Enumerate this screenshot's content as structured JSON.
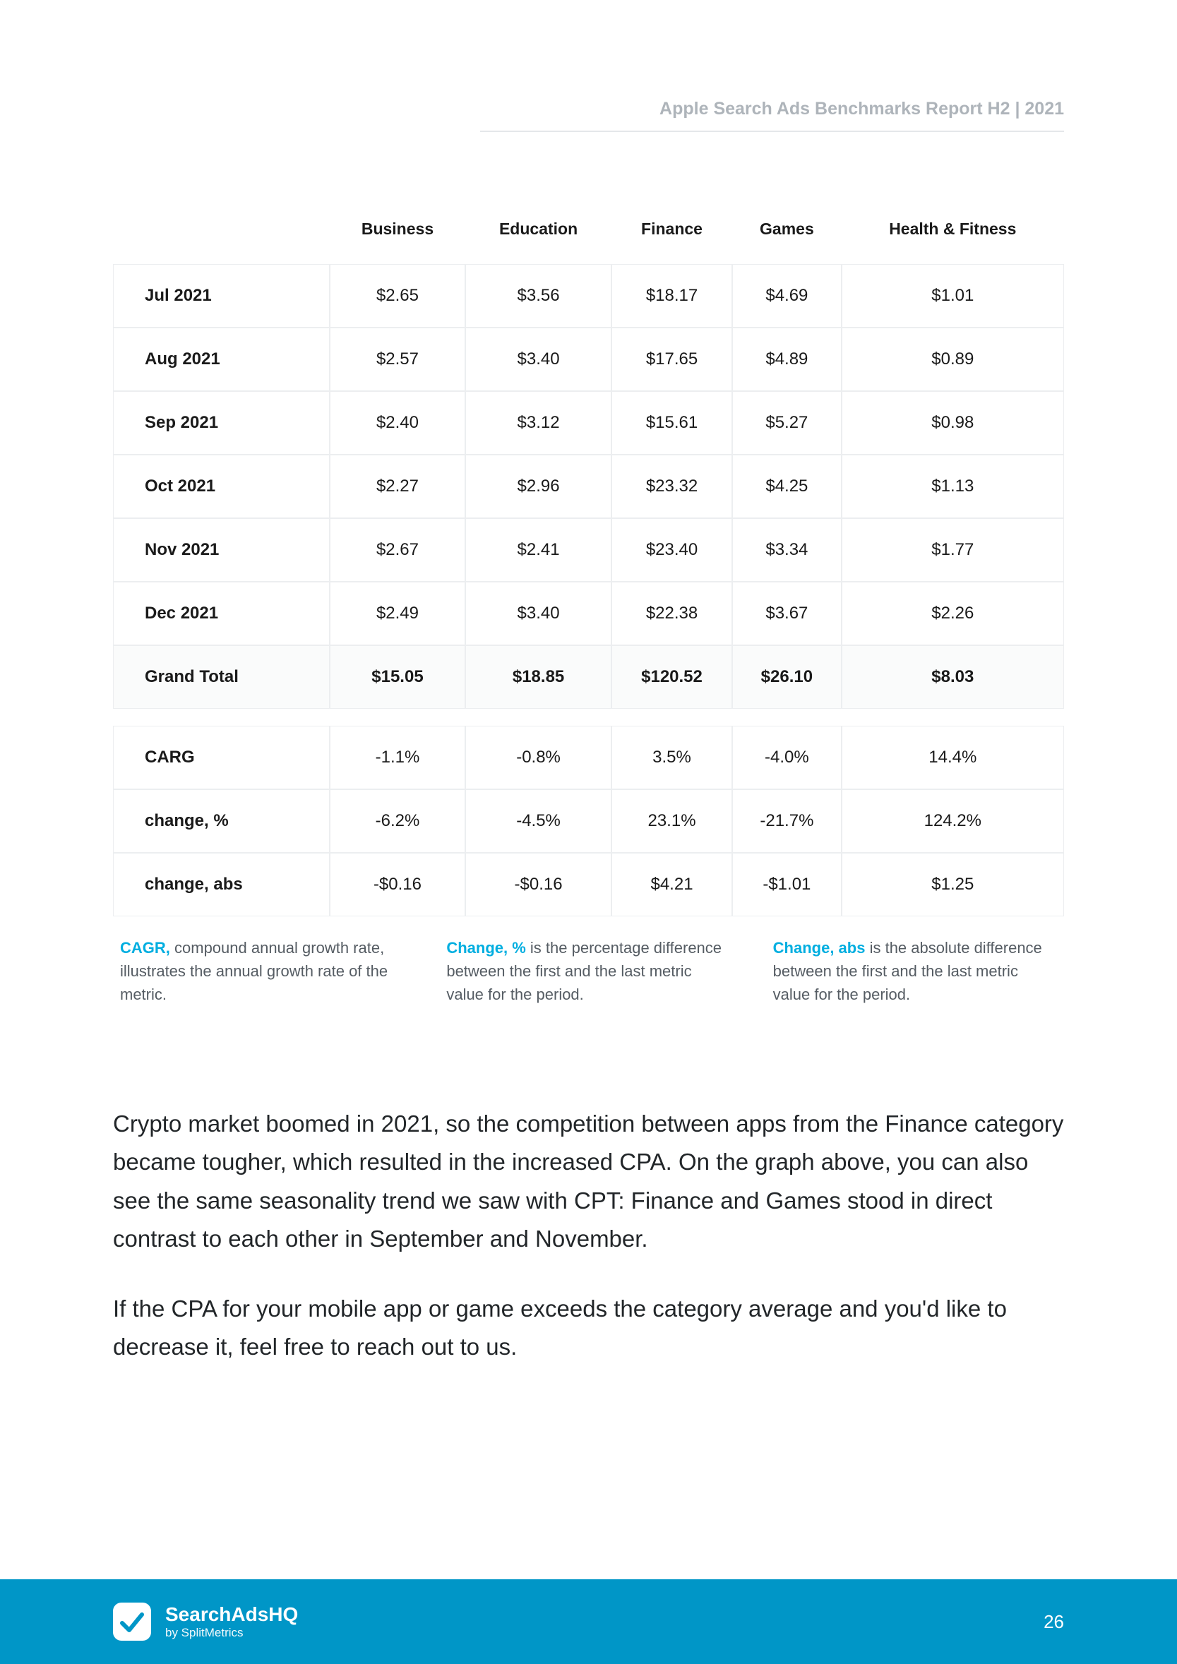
{
  "header": {
    "title": "Apple Search Ads Benchmarks Report H2 | 2021"
  },
  "table": {
    "columns": [
      "Business",
      "Education",
      "Finance",
      "Games",
      "Health & Fitness"
    ],
    "rows": [
      {
        "label": "Jul 2021",
        "cells": [
          "$2.65",
          "$3.56",
          "$18.17",
          "$4.69",
          "$1.01"
        ]
      },
      {
        "label": "Aug 2021",
        "cells": [
          "$2.57",
          "$3.40",
          "$17.65",
          "$4.89",
          "$0.89"
        ]
      },
      {
        "label": "Sep 2021",
        "cells": [
          "$2.40",
          "$3.12",
          "$15.61",
          "$5.27",
          "$0.98"
        ]
      },
      {
        "label": "Oct 2021",
        "cells": [
          "$2.27",
          "$2.96",
          "$23.32",
          "$4.25",
          "$1.13"
        ]
      },
      {
        "label": "Nov 2021",
        "cells": [
          "$2.67",
          "$2.41",
          "$23.40",
          "$3.34",
          "$1.77"
        ]
      },
      {
        "label": "Dec 2021",
        "cells": [
          "$2.49",
          "$3.40",
          "$22.38",
          "$3.67",
          "$2.26"
        ]
      }
    ],
    "total": {
      "label": "Grand Total",
      "cells": [
        "$15.05",
        "$18.85",
        "$120.52",
        "$26.10",
        "$8.03"
      ]
    },
    "metrics": [
      {
        "label": "CARG",
        "cells": [
          "-1.1%",
          "-0.8%",
          "3.5%",
          "-4.0%",
          "14.4%"
        ]
      },
      {
        "label": "change, %",
        "cells": [
          "-6.2%",
          "-4.5%",
          "23.1%",
          "-21.7%",
          "124.2%"
        ]
      },
      {
        "label": "change, abs",
        "cells": [
          "-$0.16",
          "-$0.16",
          "$4.21",
          "-$1.01",
          "$1.25"
        ]
      }
    ]
  },
  "definitions": [
    {
      "term": "CAGR,",
      "text": " compound annual growth rate, illustrates the annual growth rate of the metric."
    },
    {
      "term": "Change, %",
      "text": " is the percentage difference between the first and the last metric value for the period."
    },
    {
      "term": "Change, abs",
      "text": " is the absolute difference between the first and the last metric value for the period."
    }
  ],
  "body": {
    "p1": "Crypto market boomed in 2021, so the competition between apps from the Finance category became tougher, which resulted in the increased CPA. On the graph above, you can also see the same seasonality trend we saw with CPT: Finance and Games stood in direct contrast to each other in September and November.",
    "p2": "If the CPA for your mobile app or game exceeds the category average and you'd like to decrease it, feel free to reach out to us."
  },
  "footer": {
    "brand_main": "SearchAdsHQ",
    "brand_sub": "by SplitMetrics",
    "page_number": "26",
    "accent_color": "#0096c7"
  }
}
